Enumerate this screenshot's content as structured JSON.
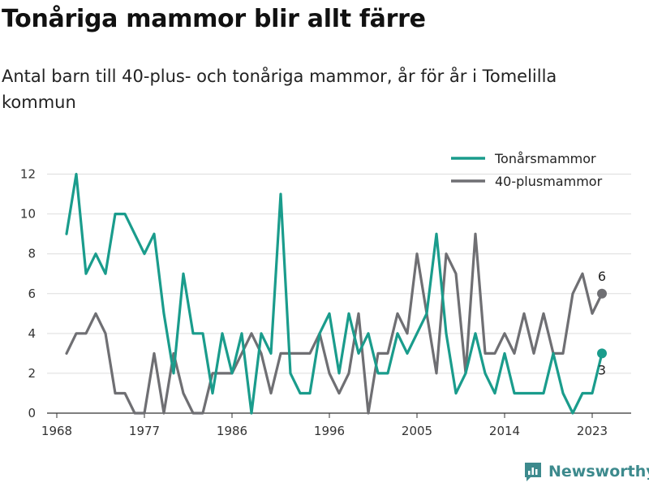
{
  "header": {
    "title": "Tonåriga mammor blir allt färre",
    "subtitle": "Antal barn till 40-plus- och tonåriga mammor, år för år i Tomelilla kommun"
  },
  "brand": {
    "name": "Newsworthy",
    "color": "#3d8a8d"
  },
  "chart_data": {
    "type": "line",
    "x": [
      1969,
      1970,
      1971,
      1972,
      1973,
      1974,
      1975,
      1976,
      1977,
      1978,
      1979,
      1980,
      1981,
      1982,
      1983,
      1984,
      1985,
      1986,
      1987,
      1988,
      1989,
      1990,
      1991,
      1992,
      1993,
      1994,
      1995,
      1996,
      1997,
      1998,
      1999,
      2000,
      2001,
      2002,
      2003,
      2004,
      2005,
      2006,
      2007,
      2008,
      2009,
      2010,
      2011,
      2012,
      2013,
      2014,
      2015,
      2016,
      2017,
      2018,
      2019,
      2020,
      2021,
      2022,
      2023,
      2024
    ],
    "series": [
      {
        "name": "Tonårsmammor",
        "color": "#1a9c8c",
        "values": [
          9,
          12,
          7,
          8,
          7,
          10,
          10,
          9,
          8,
          9,
          5,
          2,
          7,
          4,
          4,
          1,
          4,
          2,
          4,
          0,
          4,
          3,
          11,
          2,
          1,
          1,
          4,
          5,
          2,
          5,
          3,
          4,
          2,
          2,
          4,
          3,
          4,
          5,
          9,
          4,
          1,
          2,
          4,
          2,
          1,
          3,
          1,
          1,
          1,
          1,
          3,
          1,
          0,
          1,
          1,
          3
        ],
        "end_label": "3"
      },
      {
        "name": "40-plusmammor",
        "color": "#6f6f73",
        "values": [
          3,
          4,
          4,
          5,
          4,
          1,
          1,
          0,
          0,
          3,
          0,
          3,
          1,
          0,
          0,
          2,
          2,
          2,
          3,
          4,
          3,
          1,
          3,
          3,
          3,
          3,
          4,
          2,
          1,
          2,
          5,
          0,
          3,
          3,
          5,
          4,
          8,
          5,
          2,
          8,
          7,
          2,
          9,
          3,
          3,
          4,
          3,
          5,
          3,
          5,
          3,
          3,
          6,
          7,
          5,
          6
        ],
        "end_label": "6"
      }
    ],
    "x_ticks": [
      1968,
      1977,
      1986,
      1996,
      2005,
      2014,
      2023
    ],
    "y_ticks": [
      0,
      2,
      4,
      6,
      8,
      10,
      12
    ],
    "xlim": [
      1967,
      2027
    ],
    "ylim": [
      0,
      13
    ],
    "grid": "horizontal",
    "legend_position": "top-right"
  }
}
